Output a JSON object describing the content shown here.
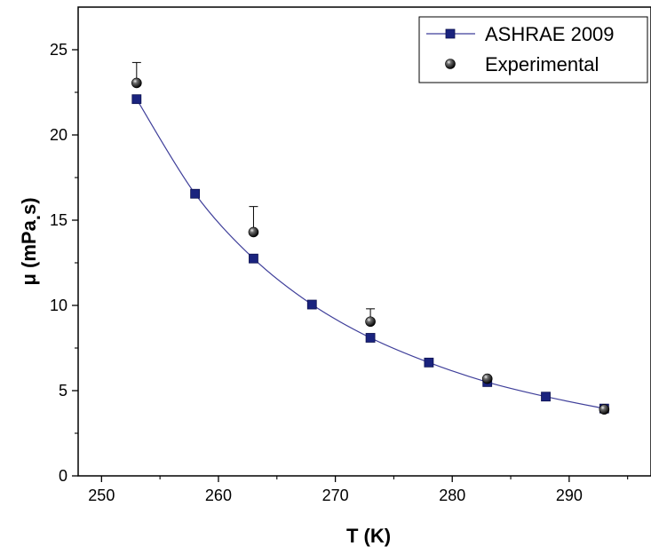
{
  "chart_data": {
    "type": "scatter",
    "title": "",
    "xlabel": "T (K)",
    "ylabel_main": "μ (mPa",
    "ylabel_dot": ".",
    "ylabel_tail": "s)",
    "xlim": [
      248,
      297
    ],
    "ylim": [
      0,
      27.5
    ],
    "x_ticks": [
      250,
      260,
      270,
      280,
      290
    ],
    "y_ticks": [
      0,
      5,
      10,
      15,
      20,
      25
    ],
    "grid": false,
    "legend_position": "top-right",
    "series": [
      {
        "name": "ASHRAE 2009",
        "style": "line-square",
        "color": "#1a237e",
        "line_color": "#3f3f9a",
        "x": [
          253,
          258,
          263,
          268,
          273,
          278,
          283,
          288,
          293
        ],
        "y": [
          22.1,
          16.55,
          12.75,
          10.05,
          8.1,
          6.65,
          5.5,
          4.65,
          3.95
        ]
      },
      {
        "name": "Experimental",
        "style": "sphere",
        "color": "#111111",
        "x": [
          253,
          263,
          273,
          283,
          293
        ],
        "y": [
          23.05,
          14.3,
          9.05,
          5.7,
          3.9
        ],
        "error_plus": [
          1.2,
          1.5,
          0.75,
          0.1,
          0.15
        ]
      }
    ]
  }
}
